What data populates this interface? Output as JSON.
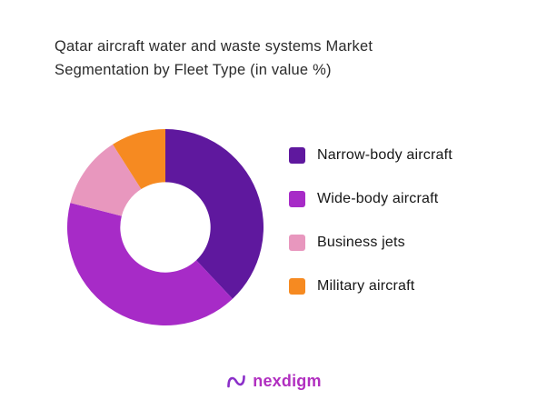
{
  "title": {
    "line1": "Qatar aircraft water and waste systems Market",
    "line2": "Segmentation by Fleet Type (in value %)"
  },
  "chart_data": {
    "type": "pie",
    "subtype": "donut",
    "title": "Qatar aircraft water and waste systems Market Segmentation by Fleet Type (in value %)",
    "categories": [
      "Narrow-body aircraft",
      "Wide-body aircraft",
      "Business jets",
      "Military aircraft"
    ],
    "values": [
      38,
      41,
      12,
      9
    ],
    "unit": "value %",
    "colors": [
      "#5f189e",
      "#a72bc7",
      "#e897be",
      "#f68a21"
    ],
    "legend_position": "right",
    "donut_hole_ratio": 0.46,
    "start_angle_deg": 0,
    "direction": "clockwise"
  },
  "legend": {
    "items": [
      {
        "label": "Narrow-body aircraft",
        "color": "#5f189e"
      },
      {
        "label": "Wide-body aircraft",
        "color": "#a72bc7"
      },
      {
        "label": "Business jets",
        "color": "#e897be"
      },
      {
        "label": "Military aircraft",
        "color": "#f68a21"
      }
    ]
  },
  "logo": {
    "text": "nexdigm",
    "icon": "nexdigm-n-wave-icon",
    "icon_color": "#8b2fc9",
    "text_color": "#b12fc0"
  }
}
